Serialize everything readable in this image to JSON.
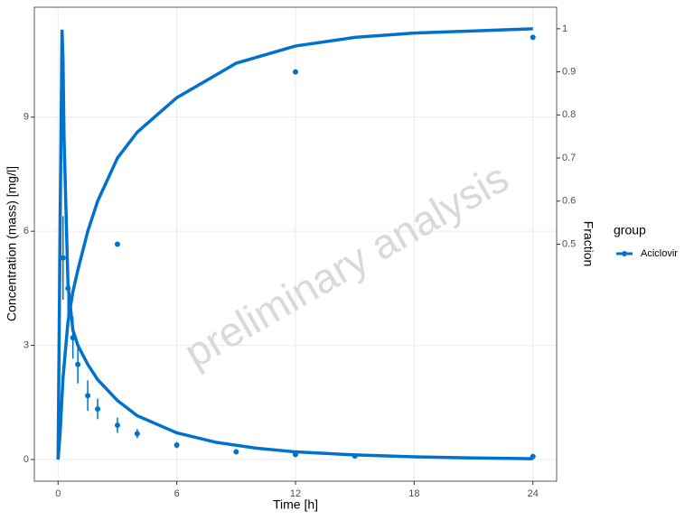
{
  "chart_data": {
    "type": "line",
    "watermark": "preliminary analysis",
    "xlabel": "Time [h]",
    "ylabel": "Concentration (mass) [mg/l]",
    "y2label": "Fraction",
    "legend_title": "group",
    "grid": true,
    "xlim": [
      -1.2,
      25.2
    ],
    "xticks": [
      0,
      6,
      12,
      18,
      24
    ],
    "ylim": [
      -0.57,
      11.89
    ],
    "yticks": [
      0,
      3,
      6,
      9
    ],
    "y2lim": [
      -0.05,
      1.05
    ],
    "y2ticks": [
      0.5,
      0.6,
      0.7,
      0.8,
      0.9,
      1.0
    ],
    "series": [
      {
        "name": "Aciclovir",
        "color": "#0072ce",
        "style": "line",
        "x": [
          0,
          0.1,
          0.2,
          0.25,
          0.3,
          0.5,
          0.75,
          1,
          1.5,
          2,
          3,
          4,
          6,
          8,
          10,
          12,
          15,
          18,
          21,
          24
        ],
        "values": [
          0,
          6,
          11.3,
          10.5,
          8.5,
          4.6,
          3.4,
          3.0,
          2.5,
          2.1,
          1.55,
          1.15,
          0.7,
          0.45,
          0.3,
          0.2,
          0.12,
          0.07,
          0.04,
          0.02
        ]
      },
      {
        "color": "#0072ce",
        "style": "line",
        "axis": "y2",
        "x": [
          0,
          0.1,
          0.25,
          0.5,
          0.75,
          1,
          1.5,
          2,
          3,
          4,
          6,
          9,
          12,
          15,
          18,
          24
        ],
        "values": [
          0,
          0.06,
          0.19,
          0.32,
          0.39,
          0.44,
          0.53,
          0.6,
          0.7,
          0.76,
          0.84,
          0.92,
          0.96,
          0.98,
          0.99,
          1.0
        ]
      },
      {
        "color": "#0072ce",
        "style": "points",
        "x": [
          0.25,
          0.5,
          0.75,
          1,
          1.5,
          2,
          3,
          4,
          6,
          9,
          12,
          15,
          24
        ],
        "values": [
          5.3,
          4.5,
          3.2,
          2.5,
          1.68,
          1.33,
          0.9,
          0.68,
          0.38,
          0.2,
          0.13,
          0.09,
          0.08
        ],
        "errors": [
          1.1,
          0.8,
          0.55,
          0.5,
          0.4,
          0.27,
          0.2,
          0.12,
          0.08,
          0.03,
          0.02,
          0.02,
          0.02
        ]
      },
      {
        "color": "#0072ce",
        "style": "points",
        "axis": "y2",
        "x": [
          3,
          12,
          24
        ],
        "values": [
          0.5,
          0.9,
          0.98
        ]
      }
    ]
  }
}
